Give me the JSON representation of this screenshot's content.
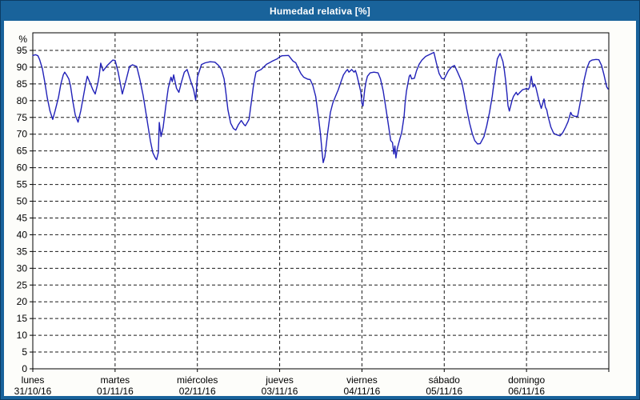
{
  "window": {
    "title": "Humedad relativa [%]"
  },
  "colors": {
    "titlebar_bg": "#19639b",
    "window_border": "#0c3c63",
    "content_bg": "#fdfdfa",
    "line": "#2121b8",
    "grid": "#1a1a1a",
    "axis": "#000000",
    "text": "#000000",
    "title_text": "#ffffff"
  },
  "chart_data": {
    "type": "line",
    "title": "Humedad relativa [%]",
    "ylabel": "%",
    "xlabel": "",
    "ylim": [
      0,
      95.5
    ],
    "yticks": [
      0,
      5,
      10,
      15,
      20,
      25,
      30,
      35,
      40,
      45,
      50,
      55,
      60,
      65,
      70,
      75,
      80,
      85,
      90,
      95
    ],
    "x_unit": "hours",
    "xlim": [
      0,
      168
    ],
    "grid": "dashed",
    "legend_position": "none",
    "x_axis_days": [
      {
        "name": "lunes",
        "date": "31/10/16"
      },
      {
        "name": "martes",
        "date": "01/11/16"
      },
      {
        "name": "miércoles",
        "date": "02/11/16"
      },
      {
        "name": "jueves",
        "date": "03/11/16"
      },
      {
        "name": "viernes",
        "date": "04/11/16"
      },
      {
        "name": "sábado",
        "date": "05/11/16"
      },
      {
        "name": "domingo",
        "date": "06/11/16"
      }
    ],
    "series": [
      {
        "name": "Humedad relativa",
        "color": "#2121b8",
        "points": [
          [
            0,
            93.5
          ],
          [
            0.8,
            93.7
          ],
          [
            1.5,
            93.4
          ],
          [
            2,
            92.2
          ],
          [
            2.8,
            89.5
          ],
          [
            3.5,
            85.5
          ],
          [
            4.2,
            81
          ],
          [
            5,
            77
          ],
          [
            5.8,
            74.4
          ],
          [
            6.5,
            77
          ],
          [
            7.5,
            81
          ],
          [
            8.2,
            85
          ],
          [
            8.9,
            87.7
          ],
          [
            9.3,
            88.5
          ],
          [
            9.9,
            87.6
          ],
          [
            10.5,
            86.5
          ],
          [
            11,
            84.5
          ],
          [
            11.7,
            79.7
          ],
          [
            12.4,
            75.7
          ],
          [
            13.2,
            73.6
          ],
          [
            14,
            77
          ],
          [
            14.7,
            81
          ],
          [
            15.4,
            84.9
          ],
          [
            15.9,
            87.3
          ],
          [
            16.7,
            85.3
          ],
          [
            17.5,
            83.3
          ],
          [
            18.2,
            82
          ],
          [
            19,
            85.3
          ],
          [
            19.4,
            87.7
          ],
          [
            19.8,
            91.2
          ],
          [
            20.5,
            88.9
          ],
          [
            21.7,
            90.5
          ],
          [
            23.3,
            92.1
          ],
          [
            24,
            92
          ],
          [
            24.9,
            88.5
          ],
          [
            26.1,
            82
          ],
          [
            27.3,
            86.5
          ],
          [
            28.2,
            90.2
          ],
          [
            29.1,
            90.7
          ],
          [
            30.3,
            90.2
          ],
          [
            31.2,
            86.5
          ],
          [
            32.2,
            81.5
          ],
          [
            32.9,
            77
          ],
          [
            33.6,
            72.5
          ],
          [
            34.3,
            68
          ],
          [
            35,
            64.5
          ],
          [
            35.7,
            63
          ],
          [
            36.1,
            62.4
          ],
          [
            36.6,
            64.5
          ],
          [
            36.9,
            73.5
          ],
          [
            37.4,
            69.3
          ],
          [
            38,
            72
          ],
          [
            38.8,
            78.5
          ],
          [
            39.5,
            83.7
          ],
          [
            40.3,
            87
          ],
          [
            40.7,
            85.7
          ],
          [
            41.1,
            87.7
          ],
          [
            41.9,
            83.7
          ],
          [
            42.6,
            82.5
          ],
          [
            43.4,
            85.7
          ],
          [
            44.2,
            88.5
          ],
          [
            45,
            89.3
          ],
          [
            46.1,
            85.7
          ],
          [
            46.9,
            83.3
          ],
          [
            47.5,
            80.2
          ],
          [
            48,
            87
          ],
          [
            49.2,
            90.8
          ],
          [
            50.3,
            91.3
          ],
          [
            51.7,
            91.6
          ],
          [
            53.1,
            91.5
          ],
          [
            54.2,
            90.5
          ],
          [
            55,
            89.3
          ],
          [
            55.8,
            86.5
          ],
          [
            56.2,
            83.3
          ],
          [
            56.9,
            77.3
          ],
          [
            57.7,
            73.3
          ],
          [
            58.5,
            71.7
          ],
          [
            59.2,
            71.2
          ],
          [
            60,
            72.9
          ],
          [
            60.8,
            74.1
          ],
          [
            61.6,
            72.9
          ],
          [
            62,
            72.5
          ],
          [
            62.7,
            73.7
          ],
          [
            63.1,
            74.5
          ],
          [
            63.5,
            77.7
          ],
          [
            63.9,
            80.9
          ],
          [
            64.3,
            84.1
          ],
          [
            64.7,
            86.5
          ],
          [
            65.1,
            88.5
          ],
          [
            65.7,
            88.9
          ],
          [
            66.6,
            89.3
          ],
          [
            67.4,
            90.1
          ],
          [
            68.2,
            90.9
          ],
          [
            69,
            91.3
          ],
          [
            69.7,
            91.7
          ],
          [
            70.5,
            92.1
          ],
          [
            71.3,
            92.5
          ],
          [
            72,
            93.1
          ],
          [
            72.7,
            93.4
          ],
          [
            74.6,
            93.5
          ],
          [
            75.9,
            91.8
          ],
          [
            76.7,
            91.3
          ],
          [
            77.4,
            89.7
          ],
          [
            78.2,
            88.1
          ],
          [
            79,
            87
          ],
          [
            80.2,
            86.4
          ],
          [
            80.9,
            86.3
          ],
          [
            81.7,
            84.5
          ],
          [
            82.5,
            81.3
          ],
          [
            83.3,
            75.3
          ],
          [
            83.9,
            70
          ],
          [
            84.4,
            64.5
          ],
          [
            84.7,
            61.5
          ],
          [
            85.2,
            63.3
          ],
          [
            86,
            70.5
          ],
          [
            86.8,
            76.5
          ],
          [
            87.5,
            79.3
          ],
          [
            88.3,
            81.3
          ],
          [
            89.1,
            83.3
          ],
          [
            89.9,
            85.7
          ],
          [
            90.6,
            87.7
          ],
          [
            91.4,
            88.9
          ],
          [
            91.8,
            89.3
          ],
          [
            92.2,
            88.5
          ],
          [
            93,
            89.3
          ],
          [
            93.7,
            88.5
          ],
          [
            94.1,
            89
          ],
          [
            94.5,
            87.7
          ],
          [
            95.3,
            84.3
          ],
          [
            95.7,
            82.5
          ],
          [
            96,
            79.2
          ],
          [
            96.3,
            78.4
          ],
          [
            96.8,
            83.3
          ],
          [
            97.2,
            85.7
          ],
          [
            97.6,
            87.3
          ],
          [
            98.4,
            88.3
          ],
          [
            99.5,
            88.5
          ],
          [
            100.7,
            88.3
          ],
          [
            101.4,
            86.5
          ],
          [
            102.2,
            82.9
          ],
          [
            103,
            77.7
          ],
          [
            103.8,
            72.1
          ],
          [
            104.4,
            68.1
          ],
          [
            104.9,
            67.5
          ],
          [
            105.3,
            64.1
          ],
          [
            105.6,
            66.5
          ],
          [
            105.9,
            62.9
          ],
          [
            106.3,
            65.7
          ],
          [
            107,
            68.4
          ],
          [
            107.6,
            70.5
          ],
          [
            108.3,
            75.3
          ],
          [
            108.6,
            79.3
          ],
          [
            109,
            82.9
          ],
          [
            109.8,
            87.3
          ],
          [
            110.1,
            87.7
          ],
          [
            110.5,
            86.5
          ],
          [
            111.3,
            86.7
          ],
          [
            111.9,
            88.9
          ],
          [
            112.7,
            90.9
          ],
          [
            113.5,
            92.1
          ],
          [
            114.6,
            93.2
          ],
          [
            115.8,
            93.8
          ],
          [
            117,
            94.4
          ],
          [
            117.7,
            91.3
          ],
          [
            118.5,
            88.1
          ],
          [
            119.3,
            86.6
          ],
          [
            120,
            86.5
          ],
          [
            121.2,
            88.9
          ],
          [
            122.1,
            90
          ],
          [
            123,
            90.5
          ],
          [
            123.9,
            88.5
          ],
          [
            125.1,
            85.7
          ],
          [
            125.8,
            82.1
          ],
          [
            126.6,
            77.3
          ],
          [
            127.4,
            73.3
          ],
          [
            128.2,
            70.1
          ],
          [
            128.9,
            68.1
          ],
          [
            129.7,
            67.1
          ],
          [
            130.5,
            67.2
          ],
          [
            131.6,
            69.3
          ],
          [
            132.4,
            72.5
          ],
          [
            133.2,
            76.5
          ],
          [
            134,
            81.3
          ],
          [
            134.8,
            87.7
          ],
          [
            135.5,
            92.5
          ],
          [
            136.3,
            94.1
          ],
          [
            137.1,
            91.7
          ],
          [
            137.5,
            89.3
          ],
          [
            137.9,
            86.1
          ],
          [
            138.3,
            82.1
          ],
          [
            138.6,
            78.5
          ],
          [
            139,
            76.9
          ],
          [
            139.8,
            80.1
          ],
          [
            140.2,
            81.3
          ],
          [
            141,
            82.5
          ],
          [
            141.4,
            81.7
          ],
          [
            142.1,
            82.5
          ],
          [
            142.9,
            83.3
          ],
          [
            143.7,
            83.5
          ],
          [
            144,
            83.7
          ],
          [
            144.5,
            83.3
          ],
          [
            144.9,
            84.1
          ],
          [
            145.4,
            87.3
          ],
          [
            145.9,
            84.1
          ],
          [
            146.4,
            84.9
          ],
          [
            146.8,
            83.7
          ],
          [
            147.6,
            80.1
          ],
          [
            148.3,
            77.7
          ],
          [
            149.1,
            80.5
          ],
          [
            149.5,
            78.1
          ],
          [
            149.9,
            77.3
          ],
          [
            150.3,
            75.3
          ],
          [
            151.1,
            72.1
          ],
          [
            151.9,
            70.3
          ],
          [
            152.6,
            69.9
          ],
          [
            153.8,
            69.5
          ],
          [
            154.6,
            70.5
          ],
          [
            155.4,
            72.1
          ],
          [
            156.1,
            73.7
          ],
          [
            156.9,
            76.5
          ],
          [
            157.3,
            75.7
          ],
          [
            158.1,
            75.3
          ],
          [
            158.9,
            75.3
          ],
          [
            159.2,
            76.9
          ],
          [
            160,
            81.3
          ],
          [
            160.8,
            86.1
          ],
          [
            161.6,
            89.7
          ],
          [
            162.4,
            91.7
          ],
          [
            163.1,
            92.1
          ],
          [
            164.3,
            92.3
          ],
          [
            165.1,
            92.2
          ],
          [
            165.9,
            90.5
          ],
          [
            166.6,
            87.7
          ],
          [
            167.4,
            84.1
          ],
          [
            167.8,
            83.5
          ]
        ]
      }
    ]
  }
}
